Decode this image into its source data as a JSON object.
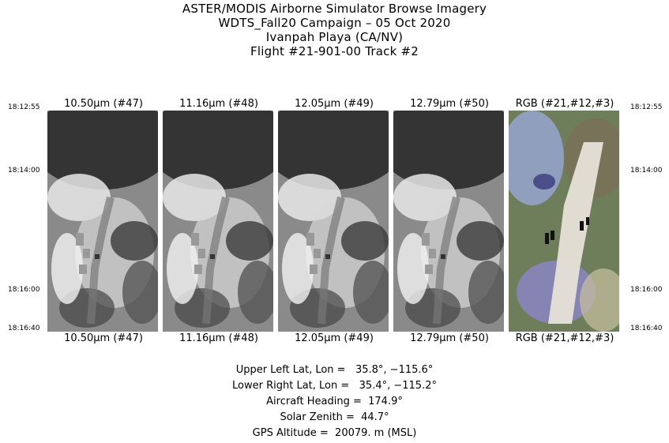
{
  "title_lines": [
    "ASTER/MODIS Airborne Simulator Browse Imagery",
    "WDTS_Fall20 Campaign – 05 Oct 2020",
    "Ivanpah Playa (CA/NV)",
    "Flight #21-901-00 Track #2"
  ],
  "bands": [
    {
      "label": "10.50µm (#47)",
      "type": "thermal"
    },
    {
      "label": "11.16µm (#48)",
      "type": "thermal"
    },
    {
      "label": "12.05µm (#49)",
      "type": "thermal"
    },
    {
      "label": "12.79µm (#50)",
      "type": "thermal"
    },
    {
      "label": "RGB (#21,#12,#3)",
      "type": "rgb"
    }
  ],
  "times": [
    "18:12:55",
    "18:14:00",
    "18:16:00",
    "18:16:40"
  ],
  "info_lines": [
    "Upper Left Lat, Lon =   35.8°, −115.6°",
    "Lower Right Lat, Lon =   35.4°, −115.2°",
    "Aircraft Heading =  174.9°",
    "Solar Zenith =  44.7°",
    "GPS Altitude =  20079. m (MSL)"
  ],
  "colors": {
    "background": "#ffffff",
    "text": "#000000"
  }
}
